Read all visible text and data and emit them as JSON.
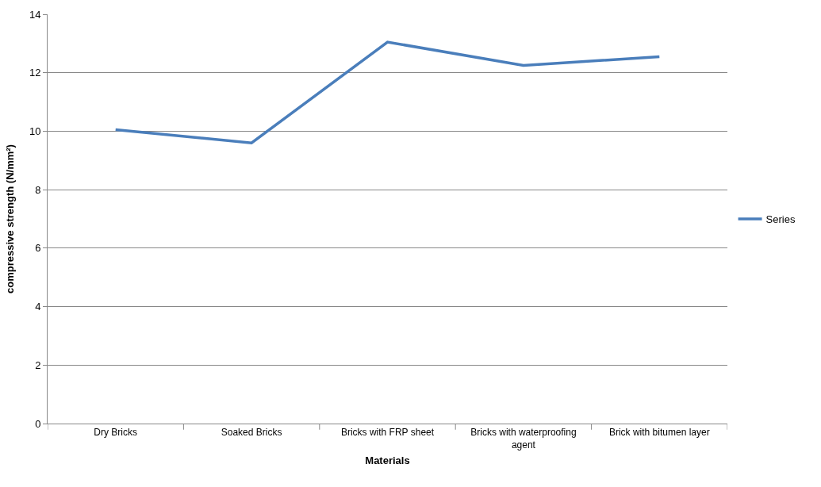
{
  "chart_data": {
    "type": "line",
    "xlabel": "Materials",
    "ylabel": "compressive strength (N/mm²)",
    "categories": [
      "Dry Bricks",
      "Soaked Bricks",
      "Bricks with FRP sheet",
      "Bricks with waterproofing agent",
      "Brick with bitumen layer"
    ],
    "series": [
      {
        "name": "Series",
        "color": "#4a7ebb",
        "values": [
          10.05,
          9.6,
          13.05,
          12.25,
          12.55
        ]
      }
    ],
    "ylim": [
      0,
      14
    ],
    "yticks": [
      0,
      2,
      4,
      6,
      8,
      10,
      12,
      14
    ],
    "grid": "y",
    "legend": "right",
    "marker": "none",
    "line_style": "solid"
  }
}
